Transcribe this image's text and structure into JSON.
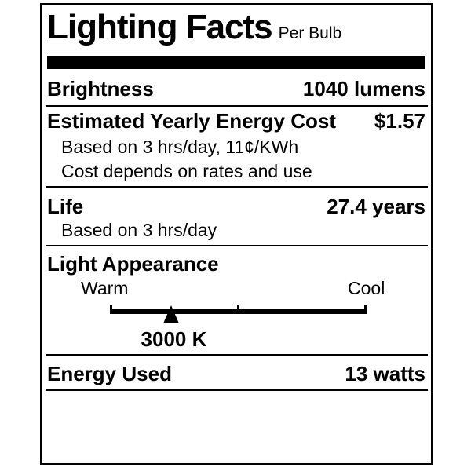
{
  "label": {
    "title": "Lighting Facts",
    "subtitle": "Per Bulb",
    "brightness": {
      "label": "Brightness",
      "value": "1040 lumens"
    },
    "energy_cost": {
      "label": "Estimated Yearly Energy Cost",
      "value": "$1.57",
      "note1": "Based on 3 hrs/day, 11¢/KWh",
      "note2": "Cost depends on rates and use"
    },
    "life": {
      "label": "Life",
      "value": "27.4 years",
      "note": "Based on 3 hrs/day"
    },
    "light_appearance": {
      "label": "Light Appearance",
      "warm_label": "Warm",
      "cool_label": "Cool",
      "kelvin": "3000 K",
      "marker_position_pct": 24
    },
    "energy_used": {
      "label": "Energy Used",
      "value": "13 watts"
    },
    "colors": {
      "ink": "#000000",
      "background": "#ffffff"
    }
  }
}
